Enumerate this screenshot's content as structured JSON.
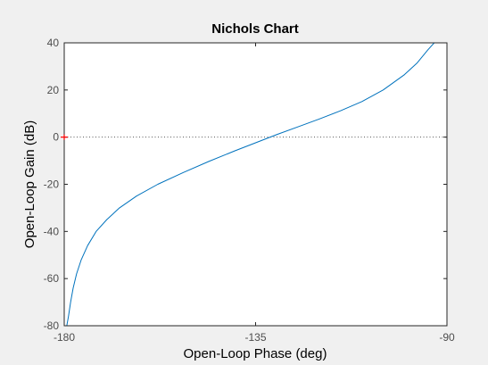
{
  "chart_data": {
    "type": "line",
    "title": "Nichols Chart",
    "xlabel": "Open-Loop Phase (deg)",
    "ylabel": "Open-Loop Gain (dB)",
    "xlim": [
      -180,
      -90
    ],
    "ylim": [
      -80,
      40
    ],
    "xticks": [
      -180,
      -135,
      -90
    ],
    "yticks": [
      -80,
      -60,
      -40,
      -20,
      0,
      20,
      40
    ],
    "grid": false,
    "zero_db_reference_line": true,
    "critical_point": {
      "phase": -180,
      "gain_db": 0
    },
    "series": [
      {
        "color": "#0072bd",
        "phase_deg": [
          -179.4,
          -179.0,
          -178.5,
          -177.9,
          -177.1,
          -176.0,
          -174.5,
          -172.5,
          -170.0,
          -167.0,
          -163.0,
          -158.0,
          -152.0,
          -146.0,
          -140.0,
          -135.0,
          -130.0,
          -125.0,
          -120.0,
          -115.0,
          -110.0,
          -105.0,
          -100.0,
          -97.0,
          -94.5,
          -93.0,
          -92.0,
          -91.4,
          -91.0
        ],
        "gain_db": [
          -80.0,
          -76.0,
          -70.0,
          -64.0,
          -58.0,
          -52.0,
          -46.0,
          -40.0,
          -35.0,
          -30.0,
          -25.0,
          -20.0,
          -15.0,
          -10.3,
          -5.9,
          -2.4,
          1.1,
          4.4,
          7.7,
          11.2,
          15.1,
          20.0,
          26.5,
          31.5,
          37.0,
          40.0,
          45.0,
          50.0,
          55.0
        ]
      }
    ]
  }
}
